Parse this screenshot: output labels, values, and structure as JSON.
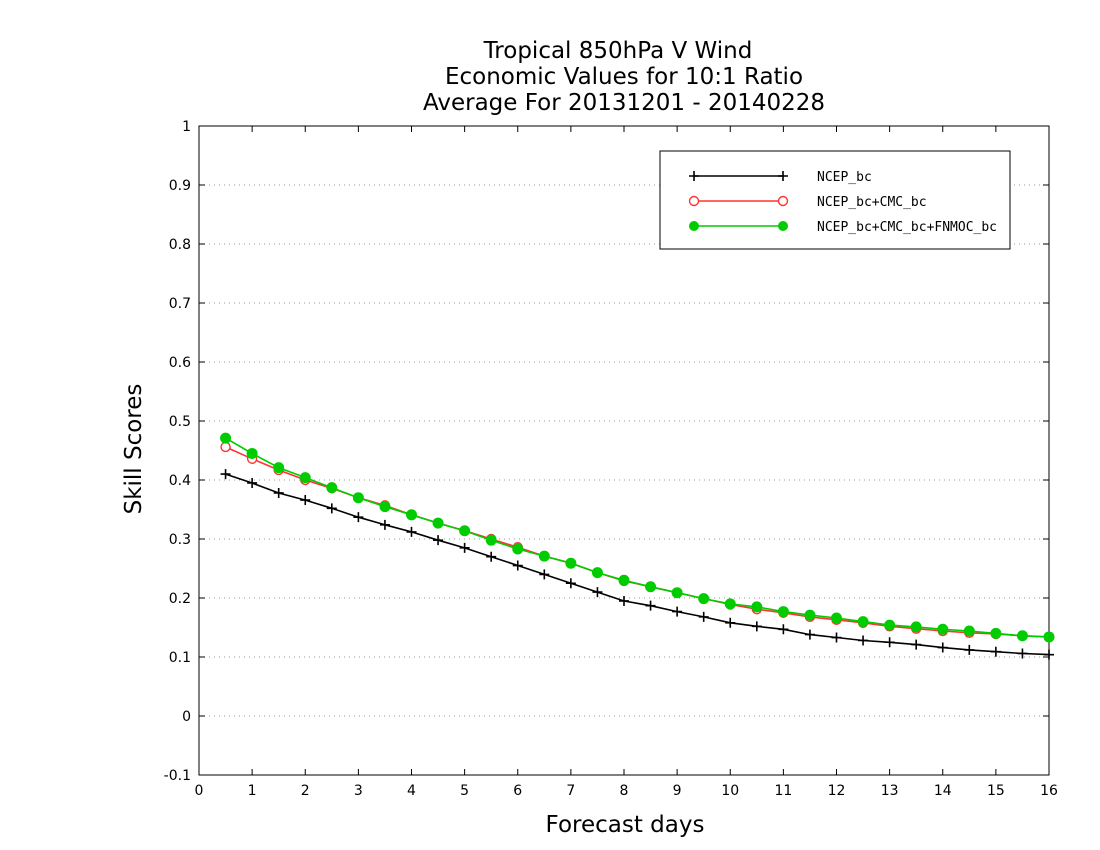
{
  "chart_data": {
    "type": "line",
    "title": [
      "Tropical 850hPa V Wind",
      "Economic Values for 10:1 Ratio",
      "Average For 20131201 - 20140228"
    ],
    "xlabel": "Forecast days",
    "ylabel": "Skill Scores",
    "xlim": [
      0,
      16
    ],
    "ylim": [
      -0.1,
      1
    ],
    "xticks": [
      "0",
      "1",
      "2",
      "3",
      "4",
      "5",
      "6",
      "7",
      "8",
      "9",
      "10",
      "11",
      "12",
      "13",
      "14",
      "15",
      "16"
    ],
    "yticks": [
      "-0.1",
      "0",
      "0.1",
      "0.2",
      "0.3",
      "0.4",
      "0.5",
      "0.6",
      "0.7",
      "0.8",
      "0.9",
      "1"
    ],
    "grid": "horizontal dotted",
    "legend_position": "top-right",
    "x": [
      0.5,
      1,
      1.5,
      2,
      2.5,
      3,
      3.5,
      4,
      4.5,
      5,
      5.5,
      6,
      6.5,
      7,
      7.5,
      8,
      8.5,
      9,
      9.5,
      10,
      10.5,
      11,
      11.5,
      12,
      12.5,
      13,
      13.5,
      14,
      14.5,
      15,
      15.5,
      16
    ],
    "series": [
      {
        "name": "NCEP_bc",
        "color": "#000000",
        "marker": "plus",
        "values": [
          0.41,
          0.395,
          0.378,
          0.366,
          0.352,
          0.337,
          0.324,
          0.312,
          0.298,
          0.285,
          0.27,
          0.255,
          0.24,
          0.225,
          0.21,
          0.195,
          0.187,
          0.177,
          0.168,
          0.158,
          0.152,
          0.147,
          0.138,
          0.133,
          0.128,
          0.125,
          0.121,
          0.116,
          0.112,
          0.109,
          0.106,
          0.104
        ]
      },
      {
        "name": "NCEP_bc+CMC_bc",
        "color": "#ff3333",
        "marker": "open-circle",
        "values": [
          0.456,
          0.436,
          0.417,
          0.4,
          0.386,
          0.37,
          0.357,
          0.341,
          0.327,
          0.314,
          0.3,
          0.286,
          0.271,
          0.259,
          0.243,
          0.229,
          0.219,
          0.209,
          0.199,
          0.189,
          0.181,
          0.175,
          0.168,
          0.163,
          0.158,
          0.152,
          0.148,
          0.144,
          0.141,
          0.139,
          0.136,
          0.134
        ]
      },
      {
        "name": "NCEP_bc+CMC_bc+FNMOC_bc",
        "color": "#00cc00",
        "marker": "filled-circle",
        "values": [
          0.471,
          0.445,
          0.421,
          0.404,
          0.387,
          0.37,
          0.355,
          0.341,
          0.327,
          0.314,
          0.298,
          0.283,
          0.271,
          0.259,
          0.243,
          0.23,
          0.219,
          0.209,
          0.199,
          0.19,
          0.185,
          0.177,
          0.171,
          0.166,
          0.16,
          0.154,
          0.151,
          0.147,
          0.144,
          0.14,
          0.136,
          0.134
        ]
      }
    ]
  }
}
